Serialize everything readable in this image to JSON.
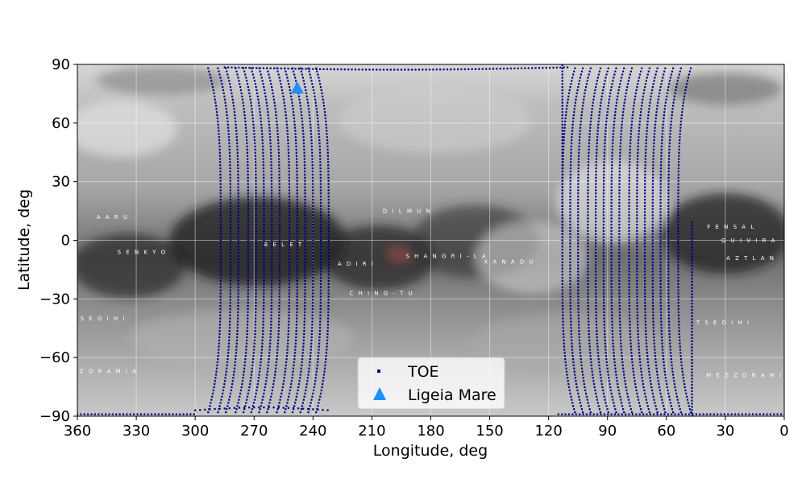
{
  "chart_data": {
    "type": "scatter",
    "xlabel": "Longitude, deg",
    "ylabel": "Latitude, deg",
    "xlim": [
      360,
      0
    ],
    "ylim": [
      -90,
      90
    ],
    "x_reversed": true,
    "x_ticks": [
      360,
      330,
      300,
      270,
      240,
      210,
      180,
      150,
      120,
      90,
      60,
      30,
      0
    ],
    "y_ticks": [
      90,
      60,
      30,
      0,
      -30,
      -60,
      -90
    ],
    "grid": true,
    "background": "grayscale Titan surface map",
    "legend_position": "bottom-center",
    "series": [
      {
        "name": "TOE",
        "marker": "square",
        "color": "#00007f",
        "description_tracks": "near-polar ground tracks",
        "tracks_west_group": [
          {
            "lon_at_equator": 287
          },
          {
            "lon_at_equator": 282
          },
          {
            "lon_at_equator": 278
          },
          {
            "lon_at_equator": 273
          },
          {
            "lon_at_equator": 269
          },
          {
            "lon_at_equator": 265
          },
          {
            "lon_at_equator": 261
          },
          {
            "lon_at_equator": 257
          },
          {
            "lon_at_equator": 252
          },
          {
            "lon_at_equator": 248
          },
          {
            "lon_at_equator": 244
          },
          {
            "lon_at_equator": 240
          },
          {
            "lon_at_equator": 236
          },
          {
            "lon_at_equator": 232
          }
        ],
        "tracks_east_group": [
          {
            "lon_at_equator": 113
          },
          {
            "lon_at_equator": 109
          },
          {
            "lon_at_equator": 105
          },
          {
            "lon_at_equator": 100
          },
          {
            "lon_at_equator": 96
          },
          {
            "lon_at_equator": 92
          },
          {
            "lon_at_equator": 88
          },
          {
            "lon_at_equator": 84
          },
          {
            "lon_at_equator": 79
          },
          {
            "lon_at_equator": 75
          },
          {
            "lon_at_equator": 71
          },
          {
            "lon_at_equator": 67
          },
          {
            "lon_at_equator": 63
          },
          {
            "lon_at_equator": 59
          },
          {
            "lon_at_equator": 54
          }
        ],
        "partial_tracks": [
          {
            "lon": 113,
            "lat_from": 0,
            "lat_to": 90
          },
          {
            "lon": 47,
            "lat_from": -90,
            "lat_to": 10
          }
        ]
      },
      {
        "name": "Ligeia Mare",
        "marker": "triangle",
        "color": "#1e90ff",
        "points": [
          {
            "x": 248,
            "y": 78
          }
        ]
      }
    ],
    "map_labels": [
      {
        "text": "D I L M U N",
        "lon": 192,
        "lat": 14
      },
      {
        "text": "B E L E T",
        "lon": 255,
        "lat": -3
      },
      {
        "text": "S E N K Y O",
        "lon": 327,
        "lat": -7
      },
      {
        "text": "A D I R I",
        "lon": 218,
        "lat": -13
      },
      {
        "text": "S H A N G R I - L A",
        "lon": 172,
        "lat": -9
      },
      {
        "text": "X A N A D U",
        "lon": 140,
        "lat": -12
      },
      {
        "text": "F E N S A L",
        "lon": 27,
        "lat": 6
      },
      {
        "text": "Q U I V I R A",
        "lon": 18,
        "lat": -1
      },
      {
        "text": "A Z T L A N",
        "lon": 17,
        "lat": -10
      },
      {
        "text": "T S E G I H I",
        "lon": 349,
        "lat": -41
      },
      {
        "text": "T S E G I H I",
        "lon": 31,
        "lat": -43
      },
      {
        "text": "C H I N G - T U",
        "lon": 205,
        "lat": -28
      },
      {
        "text": "A A R U",
        "lon": 342,
        "lat": 11
      },
      {
        "text": "M E Z Z O R A M I A",
        "lon": 351,
        "lat": -68
      },
      {
        "text": "M E Z Z O R A M I A",
        "lon": 18,
        "lat": -70
      }
    ]
  }
}
